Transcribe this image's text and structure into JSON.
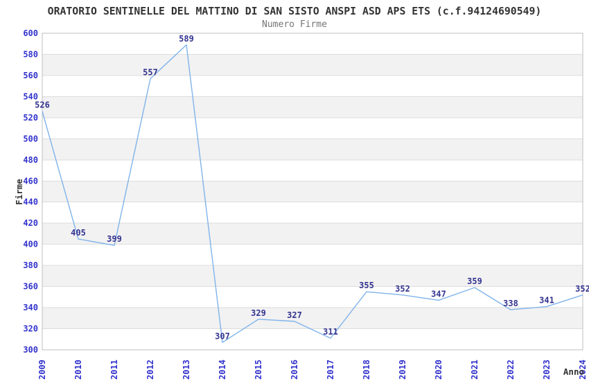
{
  "chart_data": {
    "type": "line",
    "title": "ORATORIO SENTINELLE DEL MATTINO DI SAN SISTO ANSPI ASD APS ETS (c.f.94124690549)",
    "subtitle": "Numero Firme",
    "xlabel": "Anno",
    "ylabel": "Firme",
    "categories": [
      "2009",
      "2010",
      "2011",
      "2012",
      "2013",
      "2014",
      "2015",
      "2016",
      "2017",
      "2018",
      "2019",
      "2020",
      "2021",
      "2022",
      "2023",
      "2024"
    ],
    "values": [
      526,
      405,
      399,
      557,
      589,
      307,
      329,
      327,
      311,
      355,
      352,
      347,
      359,
      338,
      341,
      352
    ],
    "ylim": [
      300,
      600
    ],
    "ytick_step": 20,
    "grid": true,
    "legend": false,
    "band_alternating": true,
    "x_labels_rotated_degrees": -90,
    "colors": {
      "line": "#7fb3ea",
      "band": "#f2f2f2",
      "gridline": "#dcdcdc",
      "border": "#bfbfbf",
      "tick_label": "#3232cd",
      "data_label": "#333390",
      "axis_title": "#333333",
      "title": "#333333",
      "subtitle": "#757575",
      "background": "#ffffff"
    }
  }
}
